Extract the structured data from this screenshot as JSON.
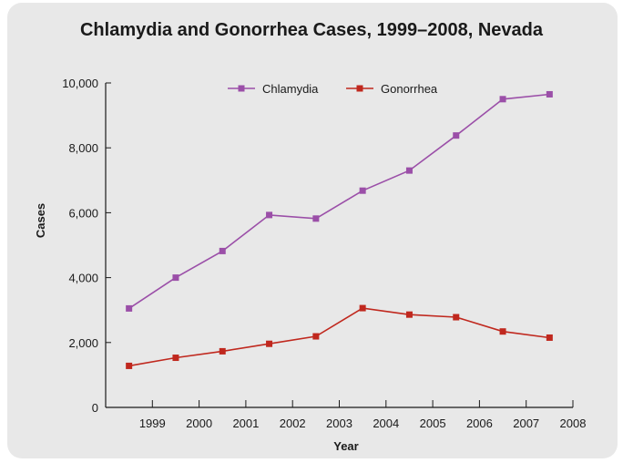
{
  "chart_data": {
    "type": "line",
    "title": "Chlamydia and Gonorrhea Cases, 1999–2008, Nevada",
    "xlabel": "Year",
    "ylabel": "Cases",
    "categories": [
      "1999",
      "2000",
      "2001",
      "2002",
      "2003",
      "2004",
      "2005",
      "2006",
      "2007",
      "2008"
    ],
    "ylim": [
      0,
      10000
    ],
    "yticks": [
      0,
      2000,
      4000,
      6000,
      8000,
      10000
    ],
    "ytick_labels": [
      "0",
      "2,000",
      "4,000",
      "6,000",
      "8,000",
      "10,000"
    ],
    "legend_position": "top",
    "grid": false,
    "series": [
      {
        "name": "Chlamydia",
        "color": "#9b4fa8",
        "marker": "square",
        "values": [
          3050,
          4000,
          4820,
          5930,
          5820,
          6680,
          7300,
          8380,
          9500,
          9650
        ]
      },
      {
        "name": "Gonorrhea",
        "color": "#c0281e",
        "marker": "square",
        "values": [
          1280,
          1530,
          1730,
          1960,
          2190,
          3060,
          2860,
          2780,
          2340,
          2150
        ]
      }
    ]
  }
}
